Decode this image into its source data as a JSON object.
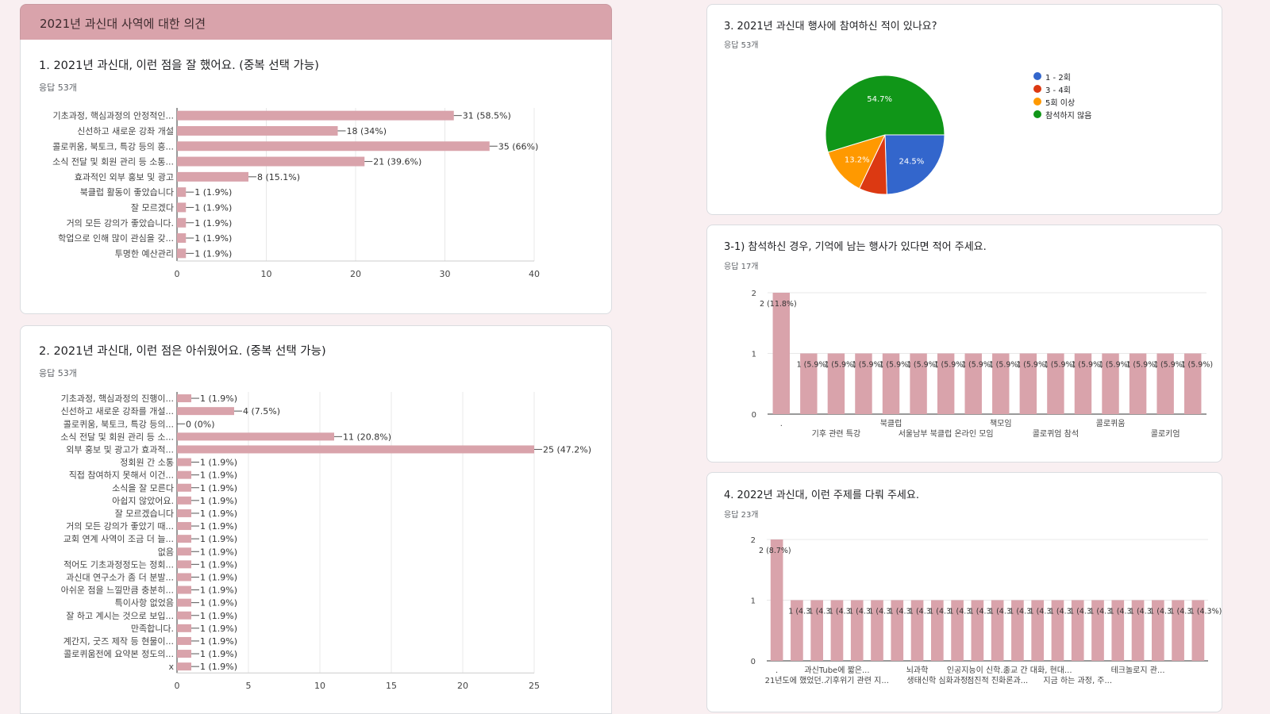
{
  "section_header": "2021년 과신대 사역에 대한 의견",
  "questions": {
    "q1": {
      "title": "1. 2021년 과신대, 이런 점을 잘 했어요. (중복 선택 가능)",
      "count": "응답 53개"
    },
    "q2": {
      "title": "2. 2021년 과신대, 이런 점은 아쉬웠어요. (중복 선택 가능)",
      "count": "응답 53개"
    },
    "q3": {
      "title": "3. 2021년 과신대 행사에 참여하신 적이 있나요?",
      "count": "응답 53개"
    },
    "q31": {
      "title": "3-1) 참석하신 경우, 기억에 남는 행사가 있다면 적어 주세요.",
      "count": "응답 17개"
    },
    "q4": {
      "title": "4. 2022년 과신대, 이런 주제를 다뤄 주세요.",
      "count": "응답 23개"
    }
  },
  "colors": {
    "bar": "#d9a3ab",
    "pie_blue": "#3366cc",
    "pie_red": "#dc3912",
    "pie_orange": "#ff9900",
    "pie_green": "#109618"
  },
  "chart_data": [
    {
      "id": "q1",
      "type": "bar",
      "orientation": "horizontal",
      "categories": [
        "기초과정, 핵심과정의 안정적인...",
        "신선하고 새로운 강좌 개설",
        "콜로퀴움, 북토크, 특강 등의 흥...",
        "소식 전달 및 회원 관리 등 소통...",
        "효과적인 외부 홍보 및 광고",
        "북클럽 활동이 좋았습니다",
        "잘 모르겠다",
        "거의 모든 강의가 좋았습니다.",
        "학업으로 인해 많이 관심을 갖...",
        "투명한 예산관리"
      ],
      "values": [
        31,
        18,
        35,
        21,
        8,
        1,
        1,
        1,
        1,
        1
      ],
      "labels": [
        "31 (58.5%)",
        "18 (34%)",
        "35 (66%)",
        "21 (39.6%)",
        "8 (15.1%)",
        "1 (1.9%)",
        "1 (1.9%)",
        "1 (1.9%)",
        "1 (1.9%)",
        "1 (1.9%)"
      ],
      "xlim": [
        0,
        40
      ],
      "xticks": [
        "0",
        "10",
        "20",
        "30",
        "40"
      ]
    },
    {
      "id": "q2",
      "type": "bar",
      "orientation": "horizontal",
      "categories": [
        "기초과정, 핵심과정의 진행이...",
        "신선하고 새로운 강좌를 개설...",
        "콜로퀴움, 북토크, 특강 등의...",
        "소식 전달 및 회원 관리 등 소...",
        "외부 홍보 및 광고가 효과적...",
        "정회원 간 소통",
        "직접 참여하지 못해서 이건...",
        "소식을 잘 모른다",
        "아쉽지 않았어요.",
        "잘 모르겠습니다",
        "거의 모든 강의가 좋았기 때...",
        "교회 연계 사역이 조금 더 늘...",
        "없음",
        "적어도 기초과정정도는 정회...",
        "과신대 연구소가 좀 더 분발...",
        "아쉬운 점을 느낄만큼 충분히...",
        "특이사항 없었음",
        "잘 하고 계시는 것으로 보입...",
        "만족합니다.",
        "계간지, 굿즈 제작 등 현물이...",
        "콜로퀴움전에 요약본 정도의...",
        "x"
      ],
      "values": [
        1,
        4,
        0,
        11,
        25,
        1,
        1,
        1,
        1,
        1,
        1,
        1,
        1,
        1,
        1,
        1,
        1,
        1,
        1,
        1,
        1,
        1
      ],
      "labels": [
        "1 (1.9%)",
        "4 (7.5%)",
        "0 (0%)",
        "11 (20.8%)",
        "25 (47.2%)",
        "1 (1.9%)",
        "1 (1.9%)",
        "1 (1.9%)",
        "1 (1.9%)",
        "1 (1.9%)",
        "1 (1.9%)",
        "1 (1.9%)",
        "1 (1.9%)",
        "1 (1.9%)",
        "1 (1.9%)",
        "1 (1.9%)",
        "1 (1.9%)",
        "1 (1.9%)",
        "1 (1.9%)",
        "1 (1.9%)",
        "1 (1.9%)",
        "1 (1.9%)"
      ],
      "xlim": [
        0,
        25
      ],
      "xticks": [
        "0",
        "5",
        "10",
        "15",
        "20",
        "25"
      ]
    },
    {
      "id": "q3",
      "type": "pie",
      "legend": [
        "1 - 2회",
        "3 - 4회",
        "5회 이상",
        "참석하지 않음"
      ],
      "values": [
        24.5,
        7.6,
        13.2,
        54.7
      ],
      "slice_labels": [
        "24.5%",
        "",
        "13.2%",
        "54.7%"
      ]
    },
    {
      "id": "q31",
      "type": "bar",
      "orientation": "vertical",
      "values": [
        2,
        1,
        1,
        1,
        1,
        1,
        1,
        1,
        1,
        1,
        1,
        1,
        1,
        1,
        1,
        1
      ],
      "labels": [
        "2 (11.8%)",
        "1 (5.9%)",
        "1 (5.9%)",
        "1 (5.9%)",
        "1 (5.9%)",
        "1 (5.9%)",
        "1 (5.9%)",
        "1 (5.9%)",
        "1 (5.9%)",
        "1 (5.9%)",
        "1 (5.9%)",
        "1 (5.9%)",
        "1 (5.9%)",
        "1 (5.9%)",
        "1 (5.9%)",
        "1 (5.9%)"
      ],
      "xlabels_row1": [
        ".",
        "",
        "",
        "",
        "북클럽",
        "",
        "",
        "",
        "책모임",
        "",
        "",
        "",
        "콜로퀴움",
        "",
        "",
        ""
      ],
      "xlabels_row2": [
        "",
        "",
        "기후 관련 특강",
        "",
        "",
        "",
        "서울남부 북클럽 온라인 모임",
        "",
        "",
        "",
        "콜로퀴엄 참석",
        "",
        "",
        "",
        "콜로키엄",
        ""
      ],
      "ylim": [
        0,
        2
      ],
      "yticks": [
        "0",
        "1",
        "2"
      ]
    },
    {
      "id": "q4",
      "type": "bar",
      "orientation": "vertical",
      "values": [
        2,
        1,
        1,
        1,
        1,
        1,
        1,
        1,
        1,
        1,
        1,
        1,
        1,
        1,
        1,
        1,
        1,
        1,
        1,
        1,
        1,
        1
      ],
      "labels": [
        "2 (8.7%)",
        "1 (4.3%)",
        "1 (4.3%)",
        "1 (4.3%)",
        "1 (4.3%)",
        "1 (4.3%)",
        "1 (4.3%)",
        "1 (4.3%)",
        "1 (4.3%)",
        "1 (4.3%)",
        "1 (4.3%)",
        "1 (4.3%)",
        "1 (4.3%)",
        "1 (4.3%)",
        "1 (4.3%)",
        "1 (4.3%)",
        "1 (4.3%)",
        "1 (4.3%)",
        "1 (4.3%)",
        "1 (4.3%)",
        "1 (4.3%)",
        "1 (4.3%)"
      ],
      "xlabels_row1": [
        ".",
        "",
        "",
        "과신Tube에 짧은...",
        "",
        "",
        "",
        "뇌과학",
        "",
        "",
        "인공지능이 신학...",
        "",
        "",
        "종교 간 대화, 현대...",
        "",
        "",
        "",
        "",
        "테크놀로지 관...",
        "",
        "",
        ""
      ],
      "xlabels_row2": [
        "",
        "21년도에 했었던...",
        "",
        "",
        "기후위기 관련 지...",
        "",
        "",
        "",
        "생태신학 심화과정",
        "",
        "",
        "점진적 진화론과...",
        "",
        "",
        "",
        "지금 하는 과정, 주...",
        "",
        "",
        "",
        "",
        "",
        ""
      ],
      "ylim": [
        0,
        2
      ],
      "yticks": [
        "0",
        "1",
        "2"
      ]
    }
  ]
}
